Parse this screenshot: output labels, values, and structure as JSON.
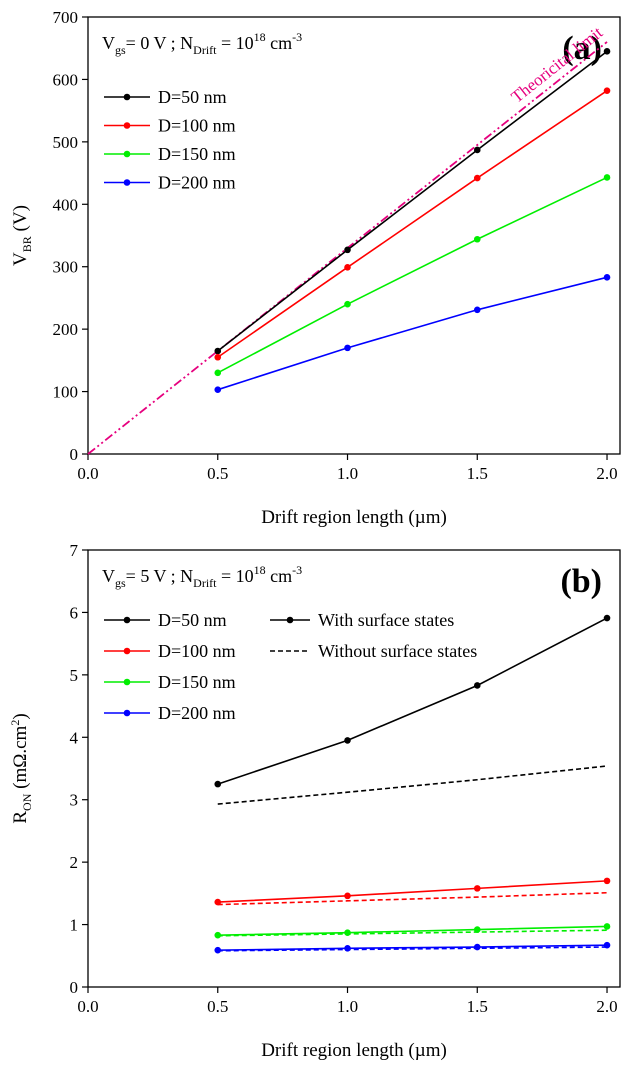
{
  "chart_data": [
    {
      "type": "line",
      "panel_label": "(a)",
      "condition": {
        "prefix": "V",
        "prefix_sub": "gs",
        "mid": "= 0 V ; N",
        "mid_sub": "Drift",
        "eq": " = 10",
        "exp": "18",
        "unit": " cm",
        "unit_sup": "-3"
      },
      "xlabel": "Drift region length (µm)",
      "ylabel": {
        "main": "V",
        "sub": "BR",
        "unit": " (V)"
      },
      "xlim": [
        0,
        2.05
      ],
      "ylim": [
        0,
        700
      ],
      "xticks": [
        "0.0",
        "0.5",
        "1.0",
        "1.5",
        "2.0"
      ],
      "yticks": [
        "0",
        "100",
        "200",
        "300",
        "400",
        "500",
        "600",
        "700"
      ],
      "grid": false,
      "legend_position": "top-left",
      "x": [
        0.5,
        1.0,
        1.5,
        2.0
      ],
      "series": [
        {
          "name": "D=50 nm",
          "color": "#000000",
          "values": [
            165,
            327,
            487,
            645
          ]
        },
        {
          "name": "D=100 nm",
          "color": "#ff0000",
          "values": [
            155,
            299,
            442,
            582
          ]
        },
        {
          "name": "D=150 nm",
          "color": "#00ee00",
          "values": [
            130,
            240,
            344,
            443
          ]
        },
        {
          "name": "D=200 nm",
          "color": "#0000ff",
          "values": [
            103,
            170,
            231,
            283
          ]
        }
      ],
      "reference_line": {
        "label": "Theoricital limit",
        "color": "#e6007e",
        "x": [
          0,
          2.0
        ],
        "values": [
          0,
          660
        ]
      }
    },
    {
      "type": "line",
      "panel_label": "(b)",
      "condition": {
        "prefix": "V",
        "prefix_sub": "gs",
        "mid": "= 5 V ; N",
        "mid_sub": "Drift",
        "eq": " = 10",
        "exp": "18",
        "unit": " cm",
        "unit_sup": "-3"
      },
      "xlabel": "Drift region length (µm)",
      "ylabel": {
        "main": "R",
        "sub": "ON",
        "unit": " (mΩ.cm",
        "unit_sup": "2",
        "close": ")"
      },
      "xlim": [
        0,
        2.05
      ],
      "ylim": [
        0,
        7
      ],
      "xticks": [
        "0.0",
        "0.5",
        "1.0",
        "1.5",
        "2.0"
      ],
      "yticks": [
        "0",
        "1",
        "2",
        "3",
        "4",
        "5",
        "6",
        "7"
      ],
      "grid": false,
      "legend_position": "top-left",
      "style_legend": [
        {
          "name": "With surface states",
          "style": "solid"
        },
        {
          "name": "Without surface states",
          "style": "dashed"
        }
      ],
      "x": [
        0.5,
        1.0,
        1.5,
        2.0
      ],
      "series": [
        {
          "name": "D=50 nm",
          "color": "#000000",
          "with_surface_states": [
            3.25,
            3.95,
            4.83,
            5.91
          ],
          "without_surface_states": [
            2.93,
            3.12,
            3.32,
            3.54
          ]
        },
        {
          "name": "D=100 nm",
          "color": "#ff0000",
          "with_surface_states": [
            1.36,
            1.46,
            1.58,
            1.7
          ],
          "without_surface_states": [
            1.32,
            1.38,
            1.44,
            1.51
          ]
        },
        {
          "name": "D=150 nm",
          "color": "#00ee00",
          "with_surface_states": [
            0.83,
            0.87,
            0.92,
            0.97
          ],
          "without_surface_states": [
            0.82,
            0.85,
            0.88,
            0.91
          ]
        },
        {
          "name": "D=200 nm",
          "color": "#0000ff",
          "with_surface_states": [
            0.59,
            0.62,
            0.64,
            0.67
          ],
          "without_surface_states": [
            0.58,
            0.6,
            0.62,
            0.64
          ]
        }
      ]
    }
  ]
}
